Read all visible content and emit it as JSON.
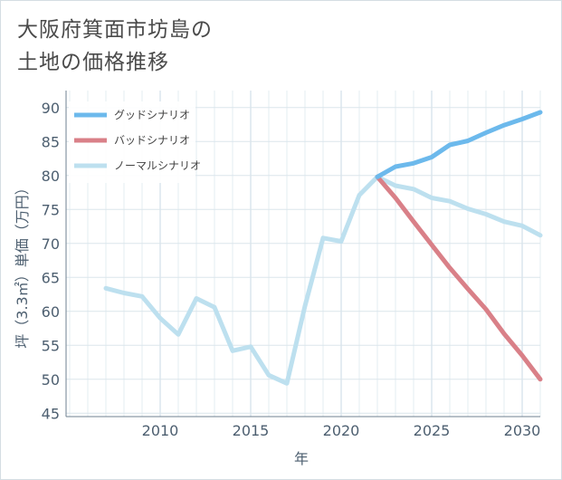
{
  "title": "大阪府箕面市坊島の\n土地の価格推移",
  "chart_data": {
    "type": "line",
    "title": "大阪府箕面市坊島の土地の価格推移",
    "xlabel": "年",
    "ylabel": "坪（3.3㎡）単価（万円）",
    "xlim": [
      2004.8,
      2031
    ],
    "ylim": [
      44.5,
      92.5
    ],
    "xticks": [
      2010,
      2015,
      2020,
      2025,
      2030
    ],
    "yticks": [
      45,
      50,
      55,
      60,
      65,
      70,
      75,
      80,
      85,
      90
    ],
    "grid": true,
    "legend_position": "top-left",
    "series": [
      {
        "name": "グッドシナリオ",
        "color": "#6cb9ec",
        "x": [
          2022,
          2023,
          2024,
          2025,
          2026,
          2027,
          2028,
          2029,
          2030,
          2031
        ],
        "values": [
          79.8,
          81.3,
          81.8,
          82.7,
          84.5,
          85.1,
          86.3,
          87.4,
          88.3,
          89.3
        ]
      },
      {
        "name": "バッドシナリオ",
        "color": "#d98088",
        "x": [
          2022,
          2023,
          2024,
          2025,
          2026,
          2027,
          2028,
          2029,
          2030,
          2031
        ],
        "values": [
          79.8,
          76.7,
          73.2,
          69.8,
          66.4,
          63.3,
          60.3,
          56.7,
          53.5,
          50.0
        ]
      },
      {
        "name": "ノーマルシナリオ",
        "color": "#bde0ef",
        "x": [
          2007,
          2008,
          2009,
          2010,
          2011,
          2012,
          2013,
          2014,
          2015,
          2016,
          2017,
          2018,
          2019,
          2020,
          2021,
          2022,
          2023,
          2024,
          2025,
          2026,
          2027,
          2028,
          2029,
          2030,
          2031
        ],
        "values": [
          63.4,
          62.7,
          62.2,
          59.0,
          56.6,
          61.9,
          60.6,
          54.2,
          54.8,
          50.6,
          49.4,
          60.8,
          70.8,
          70.3,
          77.1,
          79.8,
          78.5,
          78.0,
          76.7,
          76.2,
          75.1,
          74.3,
          73.2,
          72.6,
          71.2
        ]
      }
    ]
  }
}
